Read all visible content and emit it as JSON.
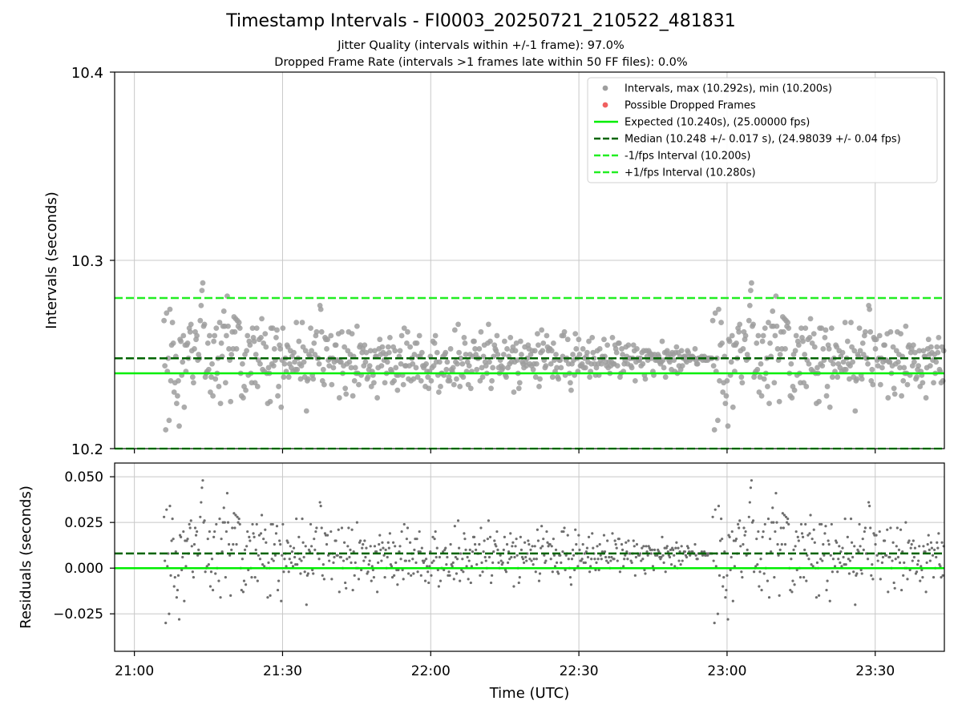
{
  "figure": {
    "title": "Timestamp Intervals - FI0003_20250721_210522_481831",
    "subtitle_1": "Jitter Quality (intervals within +/-1 frame): 97.0%",
    "subtitle_2": "Dropped Frame Rate (intervals >1 frames late within 50 FF files): 0.0%"
  },
  "colors": {
    "points": "#9e9e9e",
    "residual_points": "#6e6e6e",
    "dropped": "#f06060",
    "expected": "#00ee00",
    "median": "#006400",
    "bounds": "#22ee22",
    "grid": "#c8c8c8"
  },
  "chart_data": [
    {
      "type": "scatter",
      "name": "intervals",
      "ylabel": "Intervals (seconds)",
      "xlabel": "",
      "ylim": [
        10.2,
        10.4
      ],
      "yticks": [
        "10.2",
        "10.3",
        "10.4"
      ],
      "ytick_values": [
        10.2,
        10.3,
        10.4
      ],
      "grid": true,
      "legend_position": "top-right",
      "x_range_minutes": [
        -4,
        164
      ],
      "time_axis_start": "21:00",
      "time_step_seconds": 10.24,
      "first_point_minutes": 6.0,
      "lines": {
        "expected": 10.24,
        "median": 10.248,
        "minus_one_fps": 10.2,
        "plus_one_fps": 10.28
      },
      "legend": [
        {
          "label": "Intervals, max (10.292s), min (10.200s)",
          "style": "marker-grey"
        },
        {
          "label": "Possible Dropped Frames",
          "style": "marker-red"
        },
        {
          "label": "Expected (10.240s), (25.00000 fps)",
          "style": "solid-green"
        },
        {
          "label": "Median (10.248 +/- 0.017 s), (24.98039 +/- 0.04 fps)",
          "style": "dashed-darkgreen"
        },
        {
          "label": "-1/fps Interval (10.200s)",
          "style": "dashed-green"
        },
        {
          "label": "+1/fps Interval (10.280s)",
          "style": "dashed-green"
        }
      ],
      "values": [
        10.268,
        10.244,
        10.21,
        10.272,
        10.241,
        10.248,
        10.215,
        10.274,
        10.236,
        10.255,
        10.267,
        10.256,
        10.23,
        10.235,
        10.249,
        10.224,
        10.228,
        10.236,
        10.212,
        10.258,
        10.257,
        10.239,
        10.246,
        10.26,
        10.222,
        10.255,
        10.241,
        10.255,
        10.256,
        10.248,
        10.264,
        10.262,
        10.266,
        10.252,
        10.238,
        10.235,
        10.253,
        10.262,
        10.258,
        10.26,
        10.247,
        10.25,
        10.248,
        10.268,
        10.276,
        10.284,
        10.288,
        10.265,
        10.266,
        10.238,
        10.24,
        10.241,
        10.256,
        10.242,
        10.26,
        10.23,
        10.238,
        10.245,
        10.228,
        10.257,
        10.26,
        10.237,
        10.264,
        10.24,
        10.248,
        10.233,
        10.267,
        10.224,
        10.256,
        10.249,
        10.265,
        10.273,
        10.265,
        10.235,
        10.26,
        10.281,
        10.265,
        10.253,
        10.247,
        10.225,
        10.25,
        10.262,
        10.253,
        10.27,
        10.262,
        10.269,
        10.253,
        10.268,
        10.265,
        10.267,
        10.264,
        10.24,
        10.228,
        10.245,
        10.227,
        10.233,
        10.25,
        10.231,
        10.252,
        10.26,
        10.239,
        10.257,
        10.255,
        10.24,
        10.235,
        10.264,
        10.259,
        10.257,
        10.235,
        10.25,
        10.264,
        10.233,
        10.247,
        10.258,
        10.245,
        10.259,
        10.269,
        10.242,
        10.256,
        10.241,
        10.261,
        10.254,
        10.24,
        10.224,
        10.243,
        10.24,
        10.225,
        10.264,
        10.245,
        10.264,
        10.244,
        10.253,
        10.247,
        10.259,
        10.263,
        10.228,
        10.233,
        10.255,
        10.253,
        10.222,
        10.247,
        10.264,
        10.238,
        10.245,
        10.248,
        10.241,
        10.255,
        10.254,
        10.238,
        10.245,
        10.252,
        10.243,
        10.249,
        10.241,
        10.251,
        10.246,
        10.242,
        10.267,
        10.242,
        10.248,
        10.257,
        10.245,
        10.237,
        10.244,
        10.267,
        10.254,
        10.246,
        10.238,
        10.252,
        10.22,
        10.236,
        10.237,
        10.25,
        10.249,
        10.264,
        10.252,
        10.239,
        10.237,
        10.256,
        10.25,
        10.26,
        10.262,
        10.248,
        10.248,
        10.245,
        10.276,
        10.274,
        10.262,
        10.236,
        10.242,
        10.234,
        10.259,
        10.258,
        10.253,
        10.258,
        10.247,
        10.244,
        10.248,
        10.26,
        10.234,
        10.248,
        10.243,
        10.246,
        10.255,
        10.255,
        10.247,
        10.247,
        10.261,
        10.227,
        10.246,
        10.246,
        10.262,
        10.24,
        10.244,
        10.254,
        10.232,
        10.229,
        10.245,
        10.252,
        10.262,
        10.246,
        10.25,
        10.243,
        10.261,
        10.228,
        10.249,
        10.236,
        10.243,
        10.24,
        10.265,
        10.24,
        10.234,
        10.254,
        10.255,
        10.239,
        10.251,
        10.253,
        10.244,
        10.255,
        10.246,
        10.251,
        10.237,
        10.238,
        10.242,
        10.244,
        10.252,
        10.233,
        10.241,
        10.239,
        10.235,
        10.252,
        10.249,
        10.249,
        10.227,
        10.243,
        10.253,
        10.258,
        10.25,
        10.244,
        10.254,
        10.251,
        10.247,
        10.235,
        10.25,
        10.24,
        10.246,
        10.254,
        10.251,
        10.259,
        10.242,
        10.241,
        10.235,
        10.254,
        10.236,
        10.252,
        10.243,
        10.239,
        10.231,
        10.239,
        10.249,
        10.252,
        10.245,
        10.26,
        10.239,
        10.234,
        10.264,
        10.244,
        10.244,
        10.256,
        10.262,
        10.237,
        10.244,
        10.254,
        10.236,
        10.248,
        10.245,
        10.237,
        10.25,
        10.256,
        10.243,
        10.256,
        10.238,
        10.249,
        10.26,
        10.249,
        10.236,
        10.251,
        10.244,
        10.243,
        10.244,
        10.233,
        10.245,
        10.241,
        10.238,
        10.232,
        10.241,
        10.249,
        10.236,
        10.243,
        10.257,
        10.244,
        10.256,
        10.26,
        10.246,
        10.251,
        10.239,
        10.23,
        10.246,
        10.233,
        10.24,
        10.24,
        10.249,
        10.239,
        10.25,
        10.251,
        10.242,
        10.246,
        10.236,
        10.238,
        10.236,
        10.253,
        10.242,
        10.241,
        10.243,
        10.234,
        10.263,
        10.246,
        10.237,
        10.245,
        10.266,
        10.251,
        10.233,
        10.248,
        10.239,
        10.245,
        10.238,
        10.259,
        10.256,
        10.25,
        10.241,
        10.246,
        10.234,
        10.244,
        10.25,
        10.232,
        10.241,
        10.249,
        10.257,
        10.257,
        10.253,
        10.25,
        10.242,
        10.248,
        10.248,
        10.253,
        10.236,
        10.262,
        10.243,
        10.238,
        10.249,
        10.255,
        10.246,
        10.244,
        10.24,
        10.256,
        10.266,
        10.246,
        10.257,
        10.232,
        10.236,
        10.243,
        10.249,
        10.255,
        10.253,
        10.252,
        10.26,
        10.25,
        10.243,
        10.24,
        10.247,
        10.244,
        10.242,
        10.243,
        10.25,
        10.257,
        10.239,
        10.238,
        10.253,
        10.243,
        10.249,
        10.245,
        10.259,
        10.246,
        10.252,
        10.254,
        10.23,
        10.246,
        10.252,
        10.256,
        10.247,
        10.24,
        10.232,
        10.235,
        10.257,
        10.25,
        10.246,
        10.245,
        10.243,
        10.254,
        10.246,
        10.244,
        10.248,
        10.255,
        10.253,
        10.245,
        10.25,
        10.244,
        10.252,
        10.242,
        10.245,
        10.252,
        10.238,
        10.245,
        10.261,
        10.255,
        10.233,
        10.237,
        10.251,
        10.263,
        10.252,
        10.256,
        10.247,
        10.243,
        10.244,
        10.26,
        10.254,
        10.252,
        10.253,
        10.253,
        10.245,
        10.252,
        10.238,
        10.256,
        10.247,
        10.241,
        10.25,
        10.243,
        10.238,
        10.237,
        10.247,
        10.247,
        10.243,
        10.26,
        10.249,
        10.26,
        10.262,
        10.239,
        10.247,
        10.248,
        10.258,
        10.245,
        10.24,
        10.235,
        10.231,
        10.245,
        10.25,
        10.247,
        10.239,
        10.261,
        10.253,
        10.248,
        10.241,
        10.258,
        10.25,
        10.244,
        10.244,
        10.245,
        10.253,
        10.243,
        10.248,
        10.243,
        10.249,
        10.251,
        10.246,
        10.257,
        10.238,
        10.241,
        10.245,
        10.259,
        10.251,
        10.248,
        10.245,
        10.239,
        10.243,
        10.252,
        10.245,
        10.239,
        10.253,
        10.247,
        10.245,
        10.249,
        10.248,
        10.258,
        10.249,
        10.246,
        10.244,
        10.255,
        10.243,
        10.246,
        10.24,
        10.244,
        10.246,
        10.259,
        10.245,
        10.245,
        10.255,
        10.253,
        10.251,
        10.244,
        10.256,
        10.256,
        10.238,
        10.24,
        10.253,
        10.25,
        10.241,
        10.245,
        10.247,
        10.254,
        10.249,
        10.245,
        10.255,
        10.248,
        10.248,
        10.244,
        10.243,
        10.248,
        10.255,
        10.252,
        10.236,
        10.246,
        10.253,
        10.248,
        10.247,
        10.247,
        10.248,
        10.244,
        10.251,
        10.245,
        10.252,
        10.239,
        10.237,
        10.252,
        10.249,
        10.247,
        10.252,
        10.251,
        10.25,
        10.248,
        10.25,
        10.241,
        10.239,
        10.25,
        10.247,
        10.248,
        10.247,
        10.25,
        10.249,
        10.246,
        10.245,
        10.246,
        10.257,
        10.247,
        10.243,
        10.251,
        10.238,
        10.251,
        10.252,
        10.249,
        10.247,
        10.246,
        10.25,
        10.242,
        10.251,
        10.25,
        10.247,
        10.241,
        10.251,
        10.254,
        10.24,
        10.251,
        10.244,
        10.249,
        10.242,
        10.252,
        10.244,
        10.248,
        10.249,
        10.249,
        10.247,
        10.246,
        10.252,
        10.251,
        10.249,
        10.247,
        10.248,
        10.249,
        10.249,
        10.248,
        10.248,
        10.253,
        10.247,
        10.245,
        10.245,
        10.248,
        10.248,
        10.248,
        10.248,
        10.249,
        10.247,
        10.248,
        10.249,
        10.247,
        10.247,
        10.248,
        10.247,
        10.248,
        10.248,
        10.248,
        10.248,
        10.248
      ]
    },
    {
      "type": "scatter",
      "name": "residuals",
      "ylabel": "Residuals (seconds)",
      "xlabel": "Time (UTC)",
      "ylim": [
        -0.0455,
        0.0575
      ],
      "yticks": [
        "−0.025",
        "0.000",
        "0.025",
        "0.050"
      ],
      "ytick_values": [
        -0.025,
        0,
        0.025,
        0.05
      ],
      "xticks": [
        "21:00",
        "21:30",
        "22:00",
        "22:30",
        "23:00",
        "23:30"
      ],
      "xtick_minutes": [
        0,
        30,
        60,
        90,
        120,
        150
      ],
      "grid": true,
      "lines": {
        "zero": 0.0,
        "median_offset": 0.008
      },
      "residuals_are_intervals_minus_expected": true
    }
  ]
}
